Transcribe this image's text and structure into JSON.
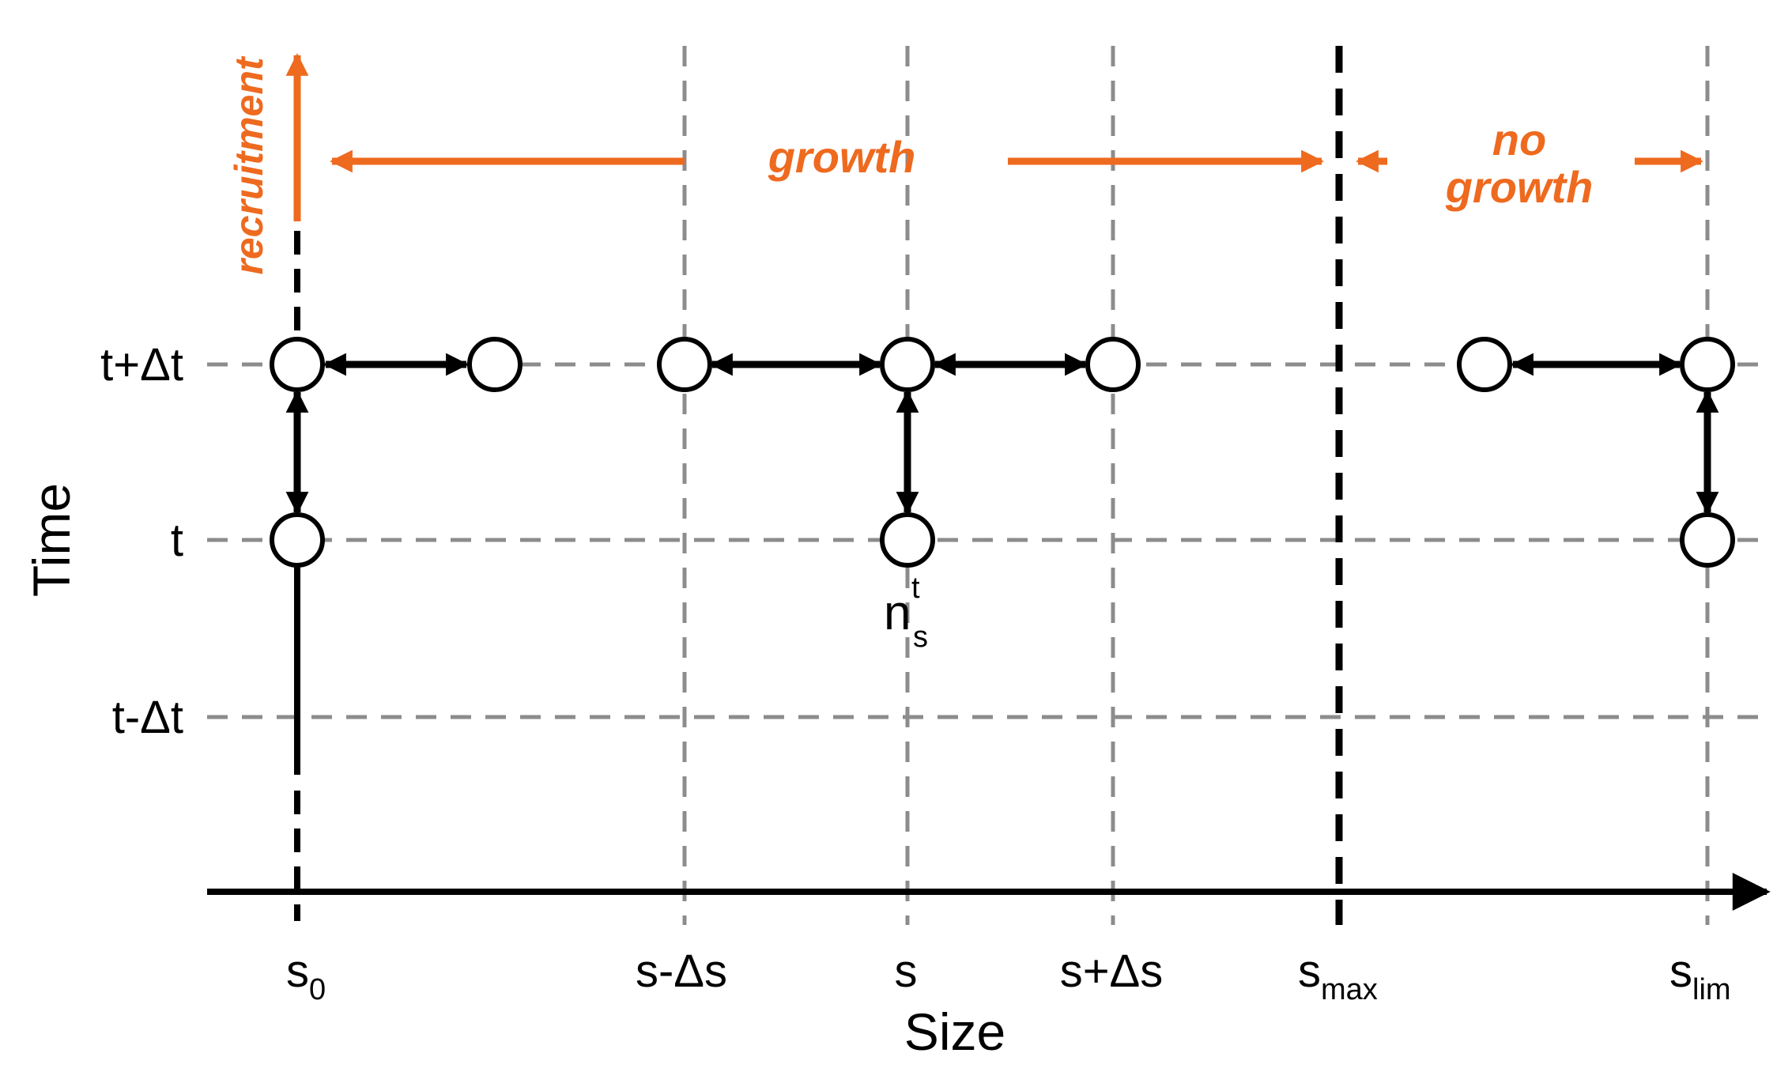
{
  "colors": {
    "accent": "#EE6A1F",
    "grid": "#8C8C8C",
    "ink": "#000000"
  },
  "axes": {
    "x_title": "Size",
    "y_title": "Time"
  },
  "time_labels": {
    "t_plus": "t+Δt",
    "t": "t",
    "t_minus": "t-Δt"
  },
  "size_labels": {
    "s0": {
      "base": "s",
      "sub": "0"
    },
    "s_minus": "s-Δs",
    "s": "s",
    "s_plus": "s+Δs",
    "smax": {
      "base": "s",
      "sub": "max"
    },
    "slim": {
      "base": "s",
      "sub": "lim"
    }
  },
  "node_label": {
    "base": "n",
    "sup": "t",
    "sub": "s"
  },
  "annotations": {
    "recruitment": "recruitment",
    "growth": "growth",
    "no_growth_1": "no",
    "no_growth_2": "growth"
  }
}
